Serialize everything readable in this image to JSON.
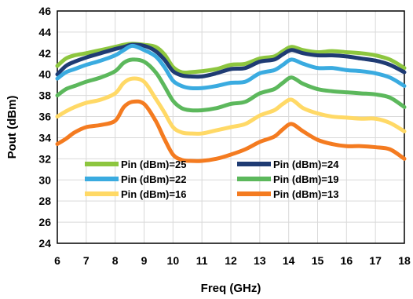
{
  "chart_data": {
    "type": "line",
    "xlabel": "Freq (GHz)",
    "ylabel": "Pout (dBm)",
    "xlim": [
      6,
      18
    ],
    "ylim": [
      24,
      46
    ],
    "xticks": [
      6,
      7,
      8,
      9,
      10,
      11,
      12,
      13,
      14,
      15,
      16,
      17,
      18
    ],
    "yticks": [
      24,
      26,
      28,
      30,
      32,
      34,
      36,
      38,
      40,
      42,
      44,
      46
    ],
    "grid": true,
    "legend_position": "lower-center",
    "x": [
      6,
      6.3,
      6.6,
      7,
      7.5,
      8,
      8.3,
      8.6,
      9.0,
      9.4,
      9.7,
      10.0,
      10.3,
      10.6,
      11,
      11.5,
      12,
      12.5,
      13,
      13.5,
      13.8,
      14.1,
      14.5,
      15,
      15.5,
      16,
      16.5,
      17,
      17.5,
      18
    ],
    "series": [
      {
        "name": "Pin (dBm)=25",
        "color": "#8dc63f",
        "values": [
          40.8,
          41.5,
          41.8,
          42.0,
          42.3,
          42.6,
          42.8,
          42.9,
          42.8,
          42.6,
          41.9,
          40.7,
          40.2,
          40.2,
          40.3,
          40.5,
          40.9,
          41.0,
          41.5,
          41.7,
          42.2,
          42.6,
          42.3,
          42.1,
          42.2,
          42.1,
          42.0,
          41.8,
          41.4,
          40.6
        ]
      },
      {
        "name": "Pin (dBm)=24",
        "color": "#1f3b73",
        "values": [
          40.0,
          40.8,
          41.2,
          41.6,
          42.0,
          42.4,
          42.6,
          42.8,
          42.7,
          42.2,
          41.4,
          40.3,
          39.9,
          39.8,
          39.8,
          40.1,
          40.5,
          40.6,
          41.2,
          41.4,
          41.9,
          42.3,
          42.0,
          41.8,
          41.8,
          41.7,
          41.5,
          41.3,
          40.9,
          40.2
        ]
      },
      {
        "name": "Pin (dBm)=22",
        "color": "#3aabe0",
        "values": [
          39.6,
          40.2,
          40.5,
          40.9,
          41.3,
          41.8,
          42.3,
          42.7,
          42.3,
          41.7,
          40.7,
          39.4,
          38.9,
          38.7,
          38.7,
          38.9,
          39.2,
          39.3,
          40.1,
          40.4,
          40.9,
          41.4,
          41.0,
          40.6,
          40.6,
          40.4,
          40.3,
          40.1,
          39.7,
          38.9
        ]
      },
      {
        "name": "Pin (dBm)=19",
        "color": "#5cb85c",
        "values": [
          38.0,
          38.6,
          38.9,
          39.3,
          39.7,
          40.3,
          41.1,
          41.4,
          41.2,
          40.2,
          38.9,
          37.5,
          36.8,
          36.6,
          36.6,
          36.8,
          37.2,
          37.4,
          38.2,
          38.6,
          39.2,
          39.7,
          39.1,
          38.6,
          38.4,
          38.3,
          38.2,
          38.1,
          37.8,
          36.9
        ]
      },
      {
        "name": "Pin (dBm)=16",
        "color": "#ffd966",
        "values": [
          36.0,
          36.5,
          36.9,
          37.3,
          37.6,
          38.2,
          39.2,
          39.6,
          39.3,
          37.7,
          36.4,
          35.0,
          34.5,
          34.4,
          34.4,
          34.7,
          35.0,
          35.3,
          36.1,
          36.6,
          37.2,
          37.6,
          36.8,
          36.3,
          36.0,
          35.9,
          35.8,
          35.8,
          35.4,
          34.6
        ]
      },
      {
        "name": "Pin (dBm)=13",
        "color": "#f47b20",
        "values": [
          33.4,
          33.9,
          34.5,
          35.0,
          35.2,
          35.6,
          36.9,
          37.4,
          37.2,
          35.6,
          33.9,
          32.4,
          31.9,
          31.8,
          31.8,
          32.0,
          32.4,
          32.9,
          33.6,
          34.1,
          34.8,
          35.3,
          34.6,
          33.8,
          33.4,
          33.2,
          33.2,
          33.1,
          32.9,
          32.0
        ]
      }
    ]
  }
}
